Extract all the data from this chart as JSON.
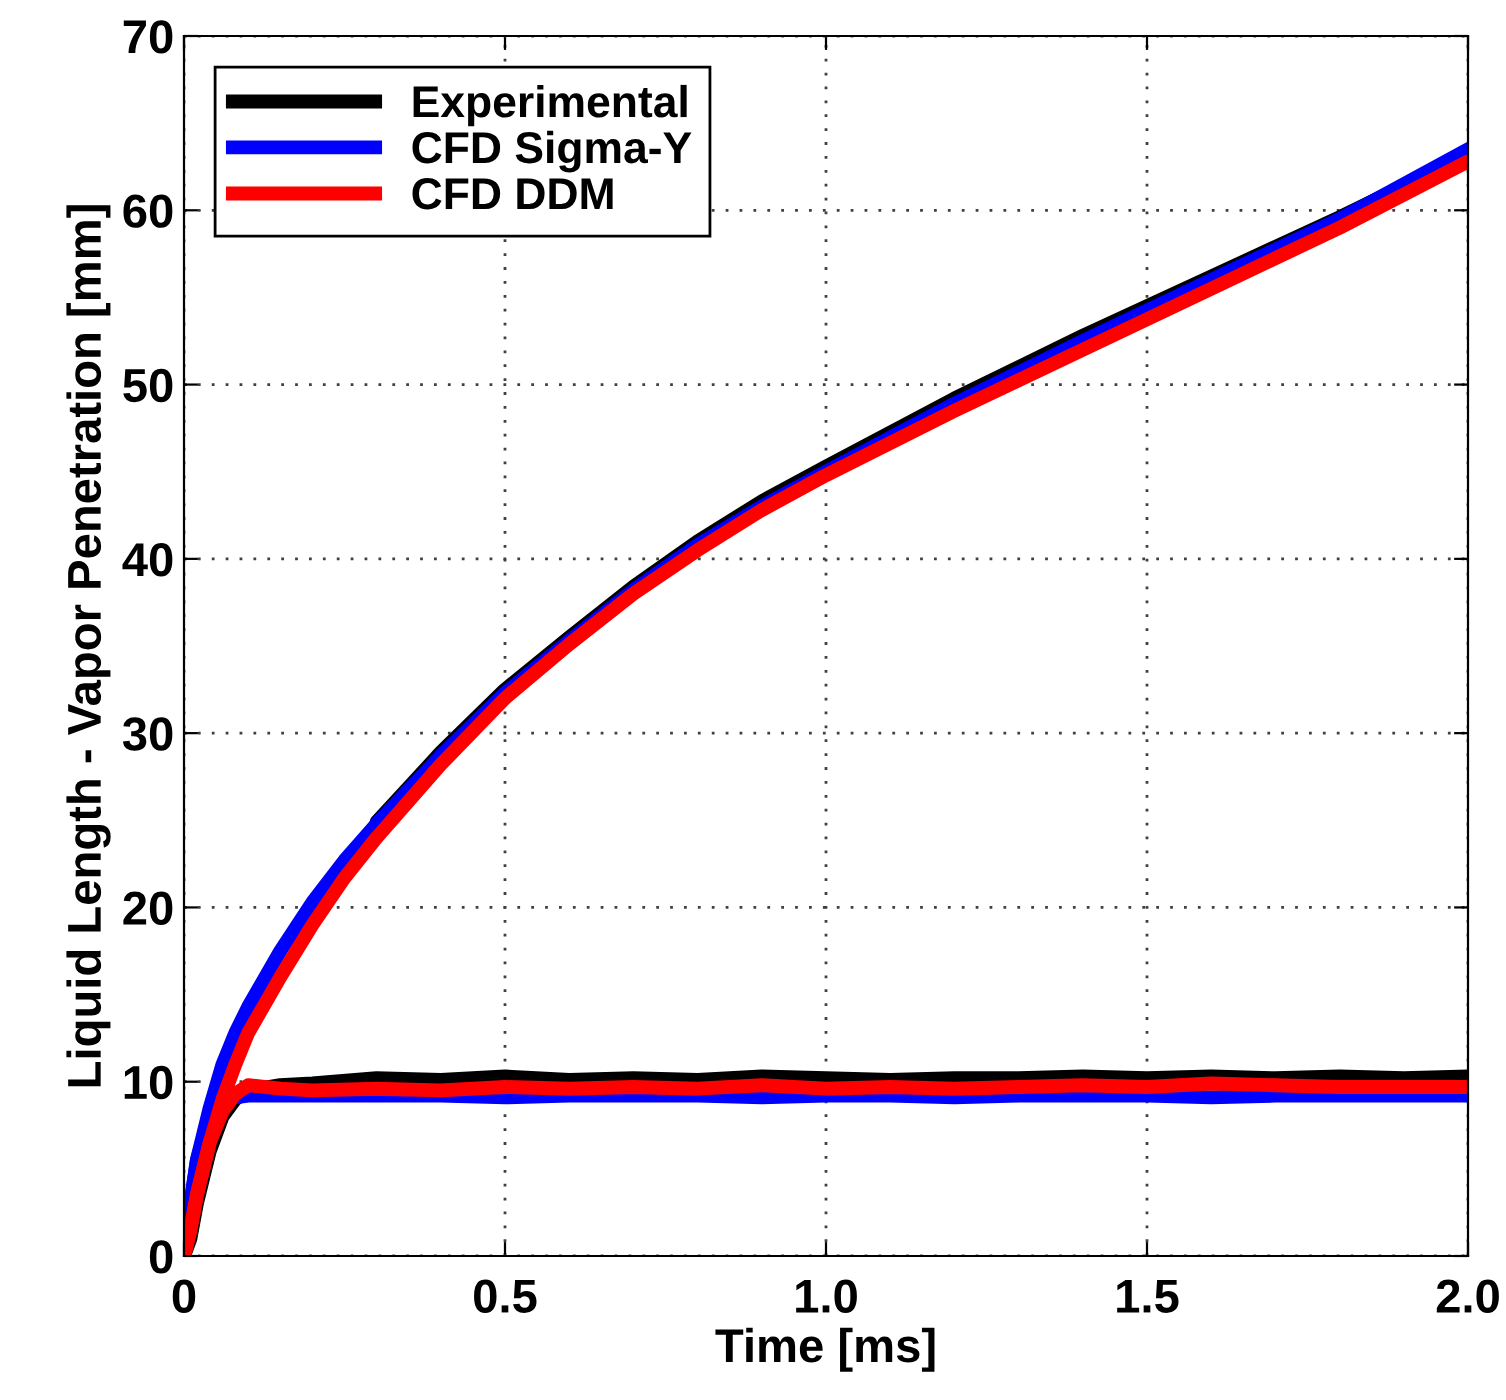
{
  "chart_data": {
    "type": "line",
    "xlabel": "Time [ms]",
    "ylabel": "Liquid Length - Vapor Penetration [mm]",
    "xlim": [
      0,
      2
    ],
    "ylim": [
      0,
      70
    ],
    "xticks": [
      0,
      0.5,
      {
        "value": 1,
        "label": "1.0"
      },
      1.5,
      {
        "value": 2,
        "label": "2.0"
      }
    ],
    "yticks": [
      0,
      10,
      20,
      30,
      40,
      50,
      60,
      70
    ],
    "grid": true,
    "legend": "top left",
    "line_style": "solid",
    "series": [
      {
        "name": "Experimental",
        "color": "#000000",
        "x": [
          0,
          0.01,
          0.02,
          0.04,
          0.06,
          0.08,
          0.1,
          0.15,
          0.2,
          0.25,
          0.3,
          0.4,
          0.5,
          0.6,
          0.7,
          0.8,
          0.9,
          1.0,
          1.2,
          1.4,
          1.6,
          1.8,
          2.0
        ],
        "values": [
          0,
          2.5,
          5,
          null,
          null,
          null,
          null,
          null,
          null,
          null,
          24.9,
          28.9,
          32.5,
          35.5,
          38.4,
          41,
          43.3,
          45.3,
          49.2,
          52.8,
          56.2,
          59.6,
          63.2
        ]
      },
      {
        "color": "#000000",
        "x": [
          0,
          0.01,
          0.02,
          0.04,
          0.06,
          0.08,
          0.1,
          0.15,
          0.2,
          0.3,
          0.4,
          0.5,
          0.6,
          0.7,
          0.8,
          0.9,
          1.0,
          1.1,
          1.2,
          1.3,
          1.4,
          1.5,
          1.6,
          1.7,
          1.8,
          1.9,
          2.0
        ],
        "values": [
          0,
          1,
          3,
          6,
          8,
          9,
          9.5,
          9.8,
          9.9,
          10.2,
          10.1,
          10.3,
          10.1,
          10.2,
          10.1,
          10.3,
          10.2,
          10.1,
          10.2,
          10.2,
          10.3,
          10.2,
          10.3,
          10.2,
          10.3,
          10.2,
          10.3
        ]
      },
      {
        "name": "CFD Sigma-Y",
        "color": "#0000ff",
        "x": [
          0,
          0.01,
          0.02,
          0.04,
          0.06,
          0.08,
          0.1,
          0.15,
          0.2,
          0.25,
          0.3,
          0.4,
          0.5,
          0.6,
          0.7,
          0.8,
          0.9,
          1.0,
          1.2,
          1.4,
          1.6,
          1.8,
          2.0
        ],
        "values": [
          0,
          3,
          5.5,
          8.5,
          11,
          12.8,
          14.3,
          17.5,
          20.3,
          22.7,
          24.8,
          28.7,
          32.3,
          35.3,
          38.2,
          40.8,
          43,
          45,
          48.9,
          52.5,
          56,
          59.5,
          63.5
        ]
      },
      {
        "color": "#0000ff",
        "x": [
          0,
          0.01,
          0.02,
          0.04,
          0.06,
          0.08,
          0.1,
          0.15,
          0.2,
          0.3,
          0.4,
          0.5,
          0.6,
          0.7,
          0.8,
          0.9,
          1.0,
          1.1,
          1.2,
          1.3,
          1.4,
          1.5,
          1.6,
          1.7,
          1.8,
          1.9,
          2.0
        ],
        "values": [
          0,
          3,
          5.5,
          8,
          9,
          9.1,
          9.2,
          9.2,
          9.2,
          9.2,
          9.2,
          9.1,
          9.2,
          9.2,
          9.2,
          9.1,
          9.2,
          9.2,
          9.1,
          9.2,
          9.2,
          9.2,
          9.1,
          9.2,
          9.2,
          9.2,
          9.2
        ]
      },
      {
        "name": "CFD DDM",
        "color": "#ff0000",
        "x": [
          0,
          0.01,
          0.02,
          0.04,
          0.06,
          0.08,
          0.1,
          0.15,
          0.2,
          0.25,
          0.3,
          0.4,
          0.5,
          0.6,
          0.7,
          0.8,
          0.9,
          1.0,
          1.2,
          1.4,
          1.6,
          1.8,
          2.0
        ],
        "values": [
          0,
          1.5,
          3.5,
          6.5,
          9,
          11,
          12.8,
          16,
          19,
          21.7,
          24,
          28.2,
          32,
          35.1,
          38,
          40.5,
          42.8,
          44.8,
          48.5,
          52,
          55.5,
          59,
          62.8
        ]
      },
      {
        "color": "#ff0000",
        "x": [
          0,
          0.01,
          0.02,
          0.04,
          0.06,
          0.08,
          0.1,
          0.15,
          0.2,
          0.3,
          0.4,
          0.5,
          0.6,
          0.7,
          0.8,
          0.9,
          1.0,
          1.1,
          1.2,
          1.3,
          1.4,
          1.5,
          1.6,
          1.7,
          1.8,
          1.9,
          2.0
        ],
        "values": [
          0,
          1.5,
          3.5,
          6.5,
          8.3,
          9.3,
          9.8,
          9.6,
          9.5,
          9.6,
          9.5,
          9.7,
          9.6,
          9.7,
          9.6,
          9.8,
          9.6,
          9.7,
          9.6,
          9.7,
          9.8,
          9.7,
          9.9,
          9.8,
          9.7,
          9.7,
          9.7
        ]
      }
    ]
  }
}
